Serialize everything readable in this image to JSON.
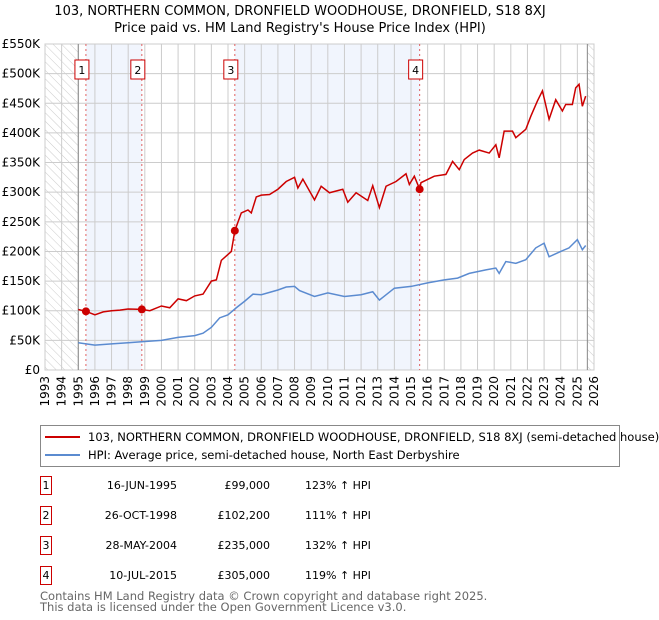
{
  "chart_data": {
    "type": "line",
    "title": "103, NORTHERN COMMON, DRONFIELD WOODHOUSE, DRONFIELD, S18 8XJ",
    "subtitle": "Price paid vs. HM Land Registry's House Price Index (HPI)",
    "xlim": [
      1993,
      2026
    ],
    "ylim": [
      0,
      550000
    ],
    "grid": true,
    "x_ticks": [
      "1993",
      "1994",
      "1995",
      "1996",
      "1997",
      "1998",
      "1999",
      "2000",
      "2001",
      "2002",
      "2003",
      "2004",
      "2005",
      "2006",
      "2007",
      "2008",
      "2009",
      "2010",
      "2011",
      "2012",
      "2013",
      "2014",
      "2015",
      "2016",
      "2017",
      "2018",
      "2019",
      "2020",
      "2021",
      "2022",
      "2023",
      "2024",
      "2025",
      "2026"
    ],
    "y_ticks": [
      {
        "v": 0,
        "label": "£0"
      },
      {
        "v": 50000,
        "label": "£50K"
      },
      {
        "v": 100000,
        "label": "£100K"
      },
      {
        "v": 150000,
        "label": "£150K"
      },
      {
        "v": 200000,
        "label": "£200K"
      },
      {
        "v": 250000,
        "label": "£250K"
      },
      {
        "v": 300000,
        "label": "£300K"
      },
      {
        "v": 350000,
        "label": "£350K"
      },
      {
        "v": 400000,
        "label": "£400K"
      },
      {
        "v": 450000,
        "label": "£450K"
      },
      {
        "v": 500000,
        "label": "£500K"
      },
      {
        "v": 550000,
        "label": "£550K"
      }
    ],
    "hatched_ranges": [
      [
        1993,
        1995
      ],
      [
        2025.6,
        2026
      ]
    ],
    "shaded_ranges": [
      [
        1995.46,
        1998.82
      ],
      [
        2004.41,
        2015.52
      ]
    ],
    "series": [
      {
        "name": "103, NORTHERN COMMON, DRONFIELD WOODHOUSE, DRONFIELD, S18 8XJ (semi-detached house)",
        "color": "#cc0000",
        "x": [
          1995.0,
          1995.46,
          1996,
          1996.5,
          1997,
          1997.5,
          1998,
          1998.82,
          1999.3,
          2000,
          2000.5,
          2001,
          2001.5,
          2002,
          2002.5,
          2003,
          2003.3,
          2003.6,
          2004,
          2004.2,
          2004.41,
          2004.8,
          2005.2,
          2005.4,
          2005.7,
          2006,
          2006.5,
          2007,
          2007.5,
          2008,
          2008.2,
          2008.5,
          2009.2,
          2009.6,
          2010.1,
          2010.9,
          2011.2,
          2011.7,
          2012.4,
          2012.7,
          2013.1,
          2013.5,
          2014.1,
          2014.7,
          2014.9,
          2015.2,
          2015.52,
          2015.6,
          2016.4,
          2017.1,
          2017.5,
          2017.9,
          2018.2,
          2018.7,
          2019.1,
          2019.7,
          2020.1,
          2020.3,
          2020.6,
          2021.1,
          2021.3,
          2021.9,
          2022.2,
          2022.6,
          2022.9,
          2023.3,
          2023.7,
          2024.1,
          2024.3,
          2024.7,
          2024.9,
          2025.1,
          2025.3,
          2025.5
        ],
        "y": [
          102000,
          99000,
          93000,
          98000,
          100000,
          101000,
          103000,
          102200,
          100000,
          108000,
          105000,
          120000,
          117000,
          125000,
          128000,
          150000,
          152000,
          185000,
          195000,
          200000,
          235000,
          265000,
          270000,
          265000,
          292000,
          295000,
          296000,
          305000,
          318000,
          325000,
          307000,
          322000,
          287000,
          310000,
          299000,
          305000,
          283000,
          299000,
          286000,
          311000,
          274000,
          310000,
          318000,
          331000,
          313000,
          327000,
          305000,
          316000,
          327000,
          330000,
          352000,
          338000,
          355000,
          366000,
          371000,
          366000,
          380000,
          358000,
          403000,
          403000,
          392000,
          406000,
          428000,
          454000,
          471000,
          423000,
          456000,
          437000,
          448000,
          448000,
          476000,
          482000,
          445000,
          462000
        ]
      },
      {
        "name": "HPI: Average price, semi-detached house, North East Derbyshire",
        "color": "#5b8bd0",
        "x": [
          1995,
          1996,
          1997,
          1998,
          1999,
          2000,
          2001,
          2002,
          2002.5,
          2003,
          2003.5,
          2004,
          2004.5,
          2005,
          2005.5,
          2006,
          2007,
          2007.5,
          2008,
          2008.3,
          2009.2,
          2010,
          2011,
          2012,
          2012.7,
          2013.1,
          2014,
          2015,
          2016,
          2017,
          2017.8,
          2018.5,
          2019.5,
          2020.1,
          2020.3,
          2020.7,
          2021.3,
          2021.9,
          2022.5,
          2023,
          2023.3,
          2024,
          2024.5,
          2025,
          2025.3,
          2025.5
        ],
        "y": [
          46000,
          42000,
          44000,
          46000,
          48000,
          50000,
          55000,
          58000,
          62000,
          72000,
          88000,
          93000,
          105000,
          116000,
          128000,
          127000,
          135000,
          140000,
          141000,
          134000,
          124000,
          130000,
          124000,
          127000,
          132000,
          118000,
          138000,
          141000,
          147000,
          152000,
          155000,
          163000,
          169000,
          172000,
          163000,
          183000,
          180000,
          186000,
          206000,
          214000,
          191000,
          200000,
          206000,
          220000,
          203000,
          210000
        ]
      }
    ],
    "sales": [
      {
        "num": "1",
        "date": "16-JUN-1995",
        "price": "£99,000",
        "hpi": "123% ↑ HPI",
        "x": 1995.46,
        "y": 99000
      },
      {
        "num": "2",
        "date": "26-OCT-1998",
        "price": "£102,200",
        "hpi": "111% ↑ HPI",
        "x": 1998.82,
        "y": 102200
      },
      {
        "num": "3",
        "date": "28-MAY-2004",
        "price": "£235,000",
        "hpi": "132% ↑ HPI",
        "x": 2004.41,
        "y": 235000
      },
      {
        "num": "4",
        "date": "10-JUL-2015",
        "price": "£305,000",
        "hpi": "119% ↑ HPI",
        "x": 2015.52,
        "y": 305000
      }
    ],
    "legend_position": "bottom"
  },
  "legend": {
    "red_label": "103, NORTHERN COMMON, DRONFIELD WOODHOUSE, DRONFIELD, S18 8XJ (semi-detached house)",
    "blue_label": "HPI: Average price, semi-detached house, North East Derbyshire"
  },
  "footer": {
    "line1": "Contains HM Land Registry data © Crown copyright and database right 2025.",
    "line2": "This data is licensed under the Open Government Licence v3.0."
  }
}
